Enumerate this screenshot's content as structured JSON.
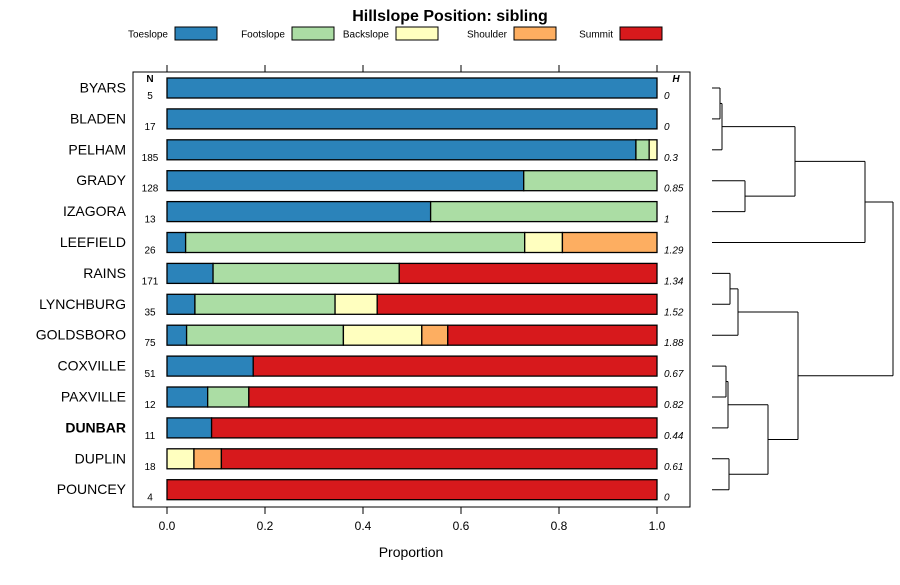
{
  "chart_data": {
    "type": "bar",
    "orientation": "horizontal",
    "stacked": true,
    "title": "Hillslope Position: sibling",
    "xlabel": "Proportion",
    "ylabel": "",
    "xlim": [
      0,
      1
    ],
    "x_ticks": [
      "0.0",
      "0.2",
      "0.4",
      "0.6",
      "0.8",
      "1.0"
    ],
    "x_tick_values": [
      0,
      0.2,
      0.4,
      0.6,
      0.8,
      1.0
    ],
    "n_header": "N",
    "h_header": "H",
    "highlighted_category": "DUNBAR",
    "categories": [
      "BYARS",
      "BLADEN",
      "PELHAM",
      "GRADY",
      "IZAGORA",
      "LEEFIELD",
      "RAINS",
      "LYNCHBURG",
      "GOLDSBORO",
      "COXVILLE",
      "PAXVILLE",
      "DUNBAR",
      "DUPLIN",
      "POUNCEY"
    ],
    "n": [
      "5",
      "17",
      "185",
      "128",
      "13",
      "26",
      "171",
      "35",
      "75",
      "51",
      "12",
      "11",
      "18",
      "4"
    ],
    "h": [
      "0",
      "0",
      "0.3",
      "0.85",
      "1",
      "1.29",
      "1.34",
      "1.52",
      "1.88",
      "0.67",
      "0.82",
      "0.44",
      "0.61",
      "0"
    ],
    "series": [
      {
        "name": "Toeslope",
        "color": "#2b83ba",
        "values": [
          1.0,
          1.0,
          0.957,
          0.728,
          0.538,
          0.038,
          0.094,
          0.057,
          0.04,
          0.176,
          0.083,
          0.091,
          0.0,
          0.0
        ]
      },
      {
        "name": "Footslope",
        "color": "#abdda4",
        "values": [
          0.0,
          0.0,
          0.027,
          0.272,
          0.462,
          0.692,
          0.38,
          0.286,
          0.32,
          0.0,
          0.084,
          0.0,
          0.0,
          0.0
        ]
      },
      {
        "name": "Backslope",
        "color": "#ffffbf",
        "values": [
          0.0,
          0.0,
          0.016,
          0.0,
          0.0,
          0.077,
          0.0,
          0.086,
          0.16,
          0.0,
          0.0,
          0.0,
          0.055,
          0.0
        ]
      },
      {
        "name": "Shoulder",
        "color": "#fdae61",
        "values": [
          0.0,
          0.0,
          0.0,
          0.0,
          0.0,
          0.193,
          0.0,
          0.0,
          0.053,
          0.0,
          0.0,
          0.0,
          0.056,
          0.0
        ]
      },
      {
        "name": "Summit",
        "color": "#d7191c",
        "values": [
          0.0,
          0.0,
          0.0,
          0.0,
          0.0,
          0.0,
          0.526,
          0.571,
          0.427,
          0.824,
          0.833,
          0.909,
          0.889,
          1.0
        ]
      }
    ],
    "legend_position": "top",
    "grid": false,
    "dendrogram": {
      "clusters": [
        [
          0,
          1,
          2,
          3,
          4,
          5
        ],
        [
          6,
          7,
          8,
          9,
          10,
          11,
          12,
          13
        ]
      ]
    }
  }
}
